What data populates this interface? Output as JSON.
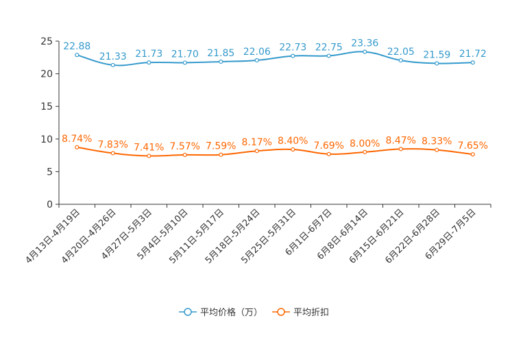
{
  "chart_data": {
    "type": "line",
    "categories": [
      "4月13日-4月19日",
      "4月20日-4月26日",
      "4月27日-5月3日",
      "5月4日-5月10日",
      "5月11日-5月17日",
      "5月18日-5月24日",
      "5月25日-5月31日",
      "6月1日-6月7日",
      "6月8日-6月14日",
      "6月15日-6月21日",
      "6月22日-6月28日",
      "6月29日-7月5日"
    ],
    "series": [
      {
        "name": "平均价格（万）",
        "color": "#3399cc",
        "values": [
          22.88,
          21.33,
          21.73,
          21.7,
          21.85,
          22.06,
          22.73,
          22.75,
          23.36,
          22.05,
          21.59,
          21.72
        ],
        "labels": [
          "22.88",
          "21.33",
          "21.73",
          "21.70",
          "21.85",
          "22.06",
          "22.73",
          "22.75",
          "23.36",
          "22.05",
          "21.59",
          "21.72"
        ]
      },
      {
        "name": "平均折扣",
        "color": "#ff6600",
        "values": [
          8.74,
          7.83,
          7.41,
          7.57,
          7.59,
          8.17,
          8.4,
          7.69,
          8.0,
          8.47,
          8.33,
          7.65
        ],
        "labels": [
          "8.74%",
          "7.83%",
          "7.41%",
          "7.57%",
          "7.59%",
          "8.17%",
          "8.40%",
          "7.69%",
          "8.00%",
          "8.47%",
          "8.33%",
          "7.65%"
        ]
      }
    ],
    "yticks": [
      "0",
      "5",
      "10",
      "15",
      "20",
      "25"
    ],
    "ylim": [
      0,
      25
    ],
    "legend_position": "bottom",
    "grid": false,
    "title": "",
    "xlabel": "",
    "ylabel": ""
  }
}
